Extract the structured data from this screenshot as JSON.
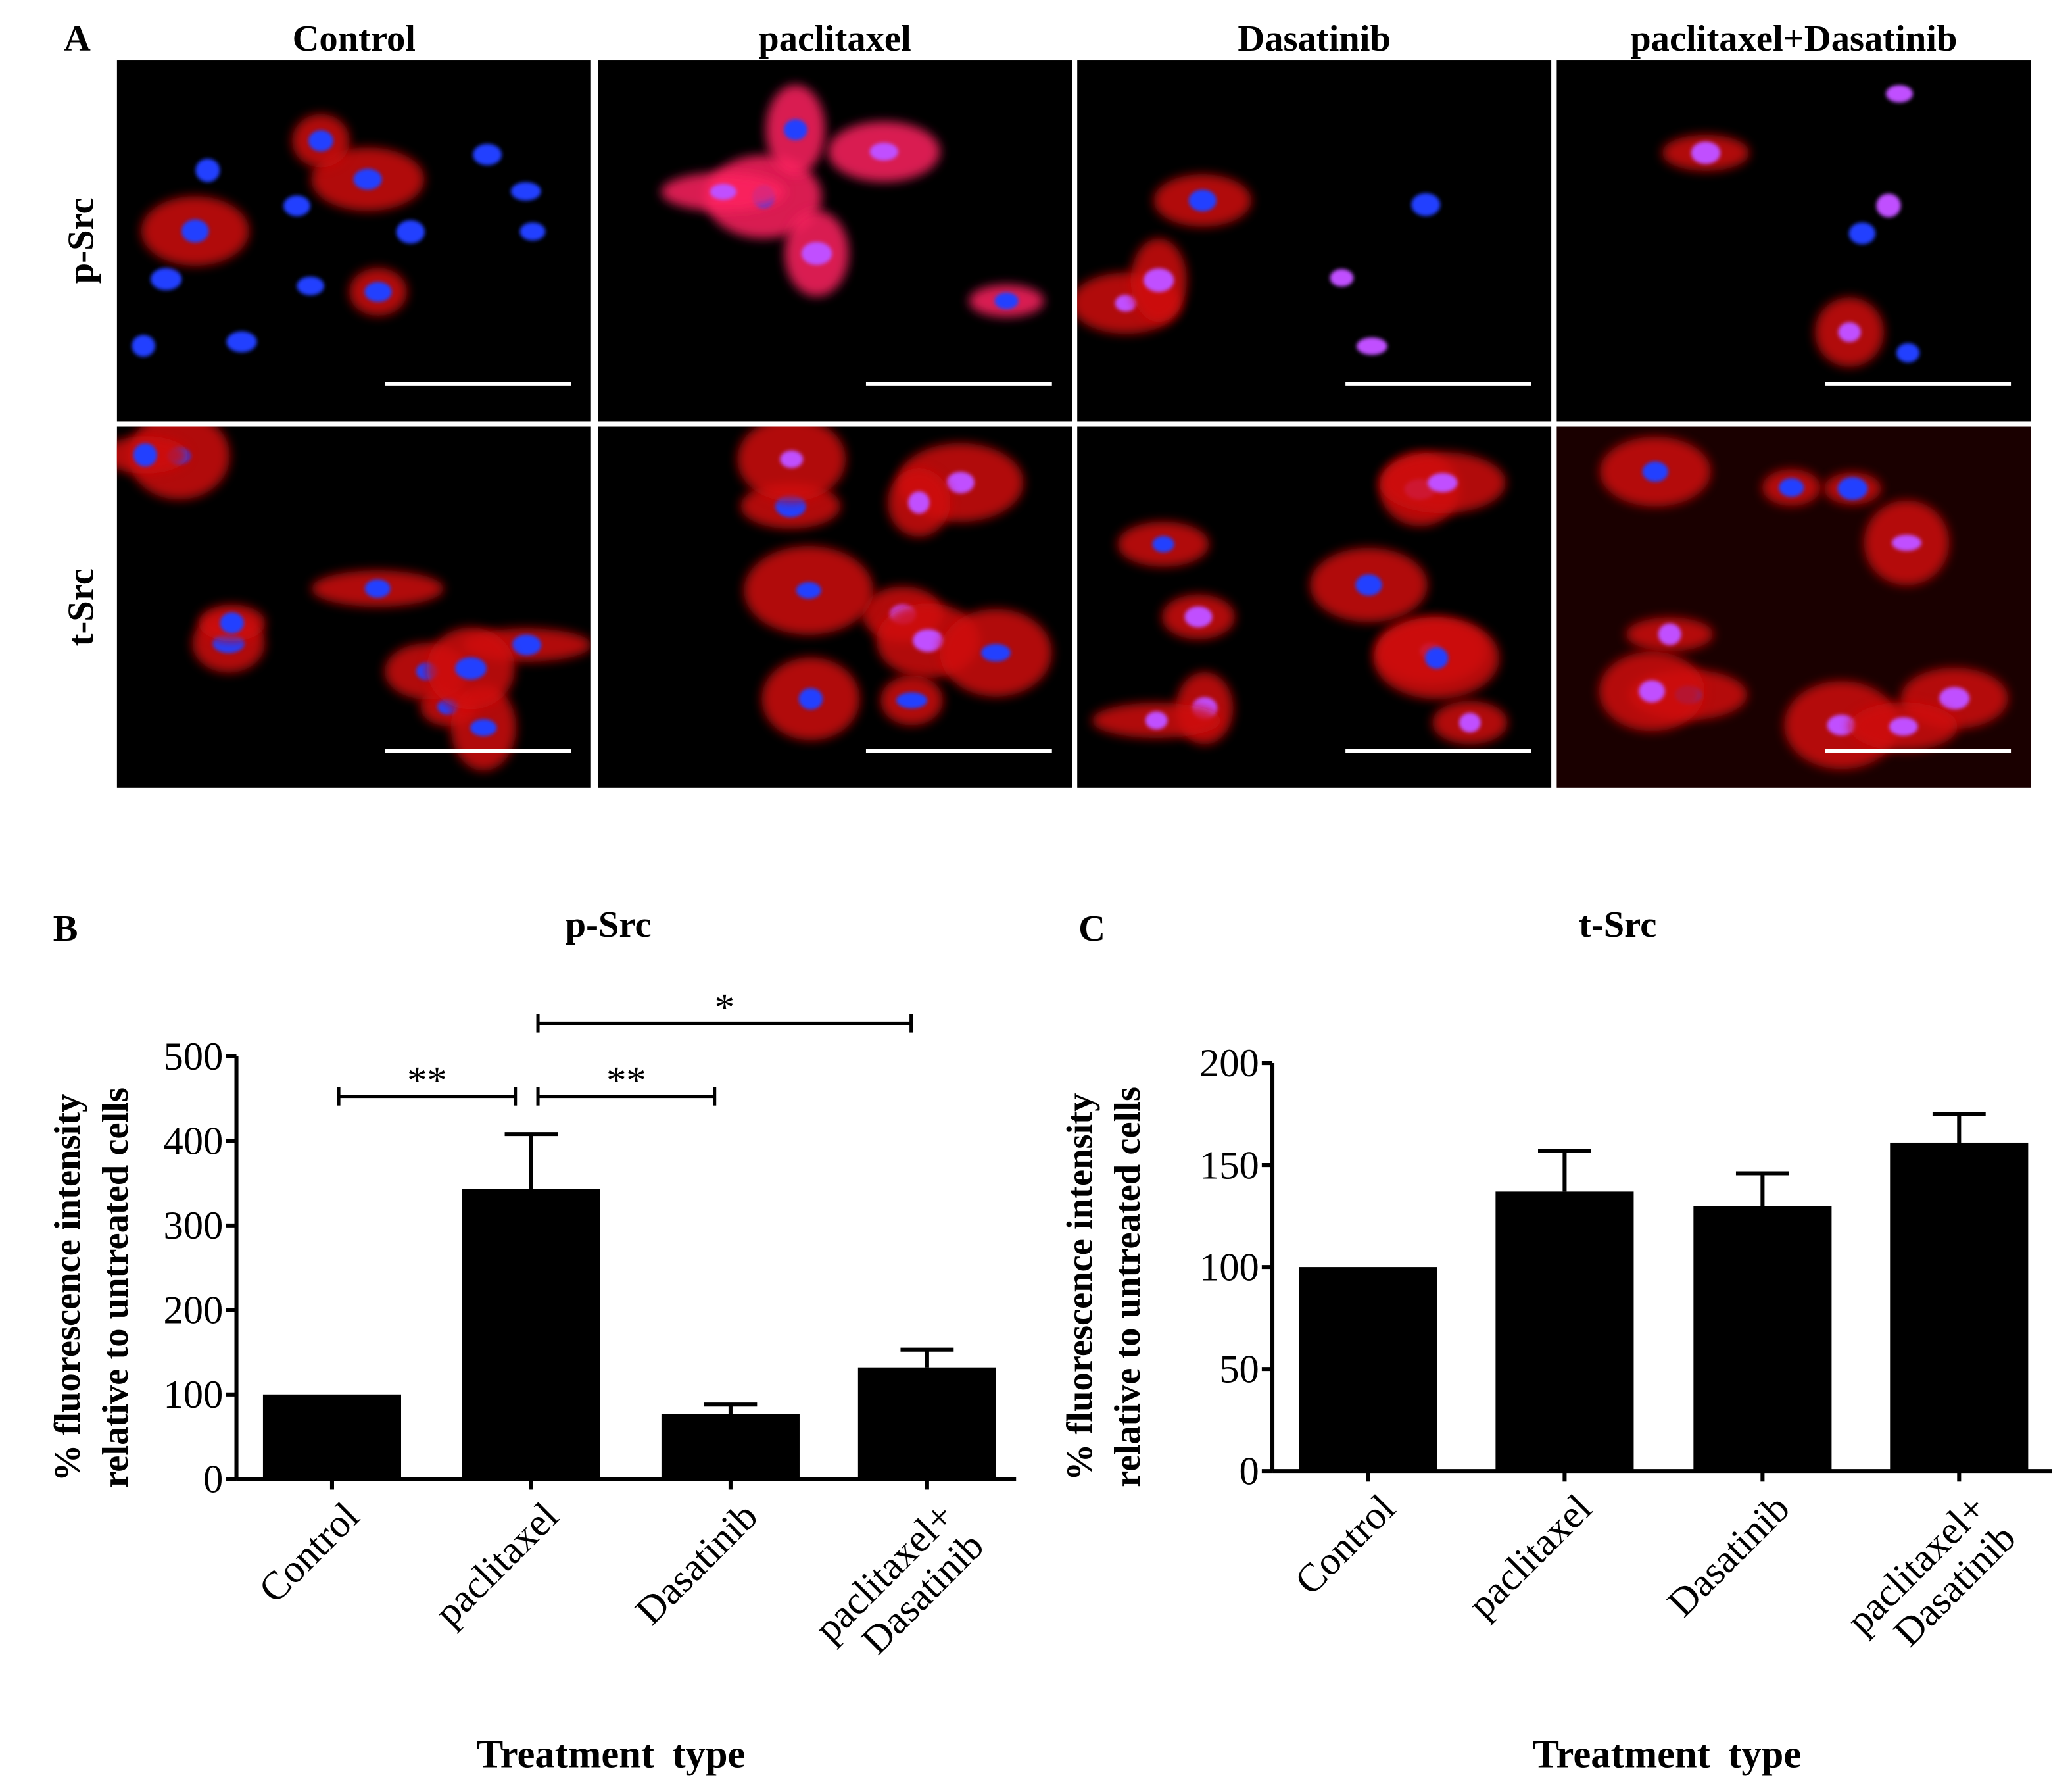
{
  "panel_a": {
    "label": "A",
    "columns": [
      "Control",
      "paclitaxel",
      "Dasatinib",
      "paclitaxel+Dasatinib"
    ],
    "rows": [
      "p-Src",
      "t-Src"
    ]
  },
  "chart_data": [
    {
      "type": "bar",
      "panel_label": "B",
      "title": "p-Src",
      "ylabel": [
        "% fluorescence intensity",
        "relative to untreated cells"
      ],
      "xlabel": "Treatment type",
      "categories": [
        "Control",
        "paclitaxel",
        "Dasatinib",
        "paclitaxel+\nDasatinib"
      ],
      "values": [
        100,
        343,
        77,
        132
      ],
      "errors": [
        0,
        65,
        11,
        21
      ],
      "color": "#000000",
      "ylim": [
        0,
        500
      ],
      "yticks": [
        0,
        100,
        200,
        300,
        400,
        500
      ],
      "annotations": [
        {
          "text": "**",
          "from": 0,
          "to": 1
        },
        {
          "text": "**",
          "from": 1,
          "to": 2
        },
        {
          "text": "*",
          "from": 1,
          "to": 3
        }
      ]
    },
    {
      "type": "bar",
      "panel_label": "C",
      "title": "t-Src",
      "ylabel": [
        "% fluorescence intensity",
        "relative to untreated cells"
      ],
      "xlabel": "Treatment type",
      "categories": [
        "Control",
        "paclitaxel",
        "Dasatinib",
        "paclitaxel+\nDasatinib"
      ],
      "values": [
        100,
        137,
        130,
        161
      ],
      "errors": [
        0,
        20,
        16,
        14
      ],
      "color": "#000000",
      "ylim": [
        0,
        200
      ],
      "yticks": [
        0,
        50,
        100,
        150,
        200
      ]
    }
  ]
}
